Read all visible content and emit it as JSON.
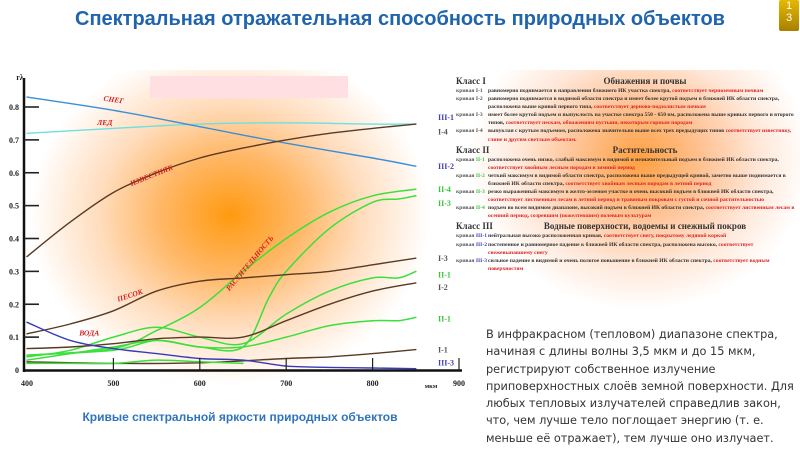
{
  "page": {
    "title": "Спектральная отражательная способность природных объектов",
    "slide_number_top": "1",
    "slide_number_bottom": "3",
    "caption": "Кривые спектральной яркости природных объектов",
    "note": "В инфракрасном (тепловом) диапазоне спектра, начиная с длины волны 3,5 мкм и до 15 мкм, регистрируют собственное излучение приповерхностных слоёв земной поверхности. Для любых тепловых излучателей справедлив закон, что, чем лучше тело поглощает энергию (т. е. меньше её отражает), тем лучше оно излучает."
  },
  "legend_table": {
    "classes": [
      {
        "name": "Класс I",
        "title": "Обнажения и почвы",
        "color": "#555555",
        "items": [
          {
            "prefix": "кривая",
            "id": "I-1",
            "text": "равномерно поднимается в направлении ближнего ИК участка спектра,",
            "match": "соответствует   черноземным почвам"
          },
          {
            "prefix": "кривая",
            "id": "I-2",
            "text": "равномерно поднимается в видимой области спектра и имеет более крутой подъем в ближней ИК области спектра, расположена выше кривой первого типа,",
            "match": "соответствует дерново-подзолистым почвам"
          },
          {
            "prefix": "кривая",
            "id": "I-3",
            "text": "имеет более крутой подъем и выпуклость на участке спектра 550 - 650 нм, расположена выше кривых первого  и второго типов,",
            "match": "соответствует пескам, обнажениям пустыни, некоторым   горным породам"
          },
          {
            "prefix": "кривая",
            "id": "I-4",
            "text": "выпуклая с крутым подъемом, расположена значительно выше всех трех предыдущих типов",
            "match": "соответствует известняку, глине и другим светлым объектам."
          }
        ]
      },
      {
        "name": "Класс II",
        "title": "Растительность",
        "color": "#3bc43b",
        "items": [
          {
            "prefix": "кривая",
            "id": "II-1",
            "text": "расположена очень низко, слабый максимум в видимой и незначительный подъем в ближней ИК области спектра,",
            "match": "соответствует хвойным лесным породам в зимний период"
          },
          {
            "prefix": "кривая",
            "id": "II-2",
            "text": "четкий максимум в видимой области спектра, расположена выше предыдущей кривой, заметно выше поднимается в ближней ИК области спектра,",
            "match": "соответствует хвойным лесным породам в летний период"
          },
          {
            "prefix": "кривая",
            "id": "II-3",
            "text": "резко выраженный максимум в желто-зеленом участке и очень высокий подъем в ближней ИК области спектра,",
            "match": "соответствует лиственным лесам в летний период и травяным покровам с густой и сочной растительностью"
          },
          {
            "prefix": "кривая",
            "id": "II-4",
            "text": "подъем во всем видимом диапазоне, высокий подъем в ближней ИК области спектра,",
            "match": "соответствует лиственным лесам в осенний период, созревшим (пожелтевшим) полевым культурам"
          }
        ]
      },
      {
        "name": "Класс III",
        "title": "Водные поверхности, водоемы и снежный покров",
        "color": "#4040b0",
        "items": [
          {
            "prefix": "кривая",
            "id": "III-1",
            "text": "нейтральная высоко расположенная кривая,",
            "match": "соответствует снегу, покрытому ледяной коркой"
          },
          {
            "prefix": "кривая",
            "id": "III-2",
            "text": "постепенное и равномерное падение к ближней ИК области спектра, расположена высоко,",
            "match": "соответствует свежевыпавшему снегу"
          },
          {
            "prefix": "кривая",
            "id": "III-3",
            "text": "сильное падение в видимой и очень пологое повышение в ближней ИК области спектра,",
            "match": "соответствует водным поверхностям"
          }
        ]
      }
    ]
  },
  "chart_data": {
    "type": "line",
    "title": "Кривые спектральной яркости природных объектов",
    "xlabel": "мкм",
    "ylabel": "rλ",
    "xlim": [
      400,
      900
    ],
    "ylim": [
      0,
      0.85
    ],
    "x_ticks": [
      400,
      500,
      600,
      700,
      800,
      900
    ],
    "x_tick_labels": [
      "400",
      "500",
      "600",
      "700",
      "800",
      "900"
    ],
    "y_ticks": [
      0,
      0.1,
      0.2,
      0.3,
      0.4,
      0.5,
      0.6,
      0.7,
      0.8
    ],
    "y_tick_labels": [
      "0",
      "0.1",
      "0.2",
      "0.3",
      "0.4",
      "0.5",
      "0.6",
      "0.7",
      "0.8"
    ],
    "grid": false,
    "annotations": [
      {
        "text": "СНЕГ",
        "x": 500,
        "y": 0.815,
        "rotate": 8
      },
      {
        "text": "ЛЕД",
        "x": 490,
        "y": 0.745,
        "rotate": 0
      },
      {
        "text": "ИЗВЕСТНЯК",
        "x": 545,
        "y": 0.585,
        "rotate": -22
      },
      {
        "text": "РАСТИТЕЛЬНОСТЬ",
        "x": 660,
        "y": 0.32,
        "rotate": -50
      },
      {
        "text": "ПЕСОК",
        "x": 520,
        "y": 0.22,
        "rotate": -18
      },
      {
        "text": "ВОДА",
        "x": 472,
        "y": 0.105,
        "rotate": 0
      }
    ],
    "series": [
      {
        "name": "III-1",
        "group": "water",
        "color": "#6ee0e0",
        "label_color": "#4040b0",
        "x": [
          400,
          500,
          600,
          700,
          800,
          850
        ],
        "y": [
          0.72,
          0.735,
          0.748,
          0.752,
          0.748,
          0.748
        ]
      },
      {
        "name": "III-2",
        "group": "water",
        "color": "#3a8fd8",
        "label_color": "#4040b0",
        "x": [
          400,
          500,
          600,
          700,
          800,
          850
        ],
        "y": [
          0.83,
          0.79,
          0.74,
          0.69,
          0.645,
          0.62
        ]
      },
      {
        "name": "I-4",
        "group": "soil",
        "color": "#5a3a22",
        "label_color": "#555555",
        "x": [
          400,
          450,
          500,
          550,
          600,
          650,
          700,
          750,
          800,
          850
        ],
        "y": [
          0.345,
          0.45,
          0.54,
          0.6,
          0.645,
          0.675,
          0.7,
          0.72,
          0.735,
          0.748
        ]
      },
      {
        "name": "II-4",
        "group": "veg",
        "color": "#3be03b",
        "label_color": "#3bc43b",
        "x": [
          400,
          500,
          550,
          600,
          650,
          700,
          750,
          800,
          850
        ],
        "y": [
          0.045,
          0.065,
          0.12,
          0.19,
          0.3,
          0.4,
          0.48,
          0.53,
          0.55
        ]
      },
      {
        "name": "II-3",
        "group": "veg",
        "color": "#3be03b",
        "label_color": "#3bc43b",
        "x": [
          400,
          500,
          550,
          600,
          650,
          680,
          700,
          750,
          800,
          830,
          850
        ],
        "y": [
          0.045,
          0.06,
          0.09,
          0.07,
          0.07,
          0.22,
          0.3,
          0.43,
          0.51,
          0.52,
          0.53
        ]
      },
      {
        "name": "I-3",
        "group": "soil",
        "color": "#5a3a22",
        "label_color": "#555555",
        "x": [
          400,
          450,
          500,
          550,
          600,
          650,
          700,
          750,
          800,
          850
        ],
        "y": [
          0.11,
          0.14,
          0.18,
          0.24,
          0.27,
          0.28,
          0.29,
          0.3,
          0.32,
          0.34
        ]
      },
      {
        "name": "II-1 (upper)",
        "group": "veg",
        "color": "#3be03b",
        "label_color": "#3bc43b",
        "label": "II-1",
        "x": [
          400,
          450,
          500,
          550,
          600,
          650,
          700,
          750,
          800,
          830,
          850
        ],
        "y": [
          0.04,
          0.06,
          0.1,
          0.13,
          0.1,
          0.08,
          0.17,
          0.24,
          0.28,
          0.28,
          0.3
        ]
      },
      {
        "name": "I-2",
        "group": "soil",
        "color": "#5a3a22",
        "label_color": "#555555",
        "x": [
          400,
          450,
          500,
          550,
          600,
          650,
          700,
          750,
          800,
          850
        ],
        "y": [
          0.065,
          0.07,
          0.08,
          0.095,
          0.1,
          0.1,
          0.15,
          0.2,
          0.24,
          0.265
        ]
      },
      {
        "name": "II-1 (lower)",
        "group": "veg",
        "color": "#3be03b",
        "label_color": "#3bc43b",
        "label": "II-1",
        "x": [
          400,
          450,
          500,
          550,
          600,
          650,
          700,
          750,
          800,
          830,
          850
        ],
        "y": [
          0.03,
          0.05,
          0.07,
          0.09,
          0.07,
          0.07,
          0.1,
          0.135,
          0.15,
          0.15,
          0.16
        ]
      },
      {
        "name": "I-1",
        "group": "soil",
        "color": "#5a3a22",
        "label_color": "#555555",
        "x": [
          400,
          500,
          600,
          700,
          750,
          800,
          850
        ],
        "y": [
          0.025,
          0.02,
          0.022,
          0.035,
          0.04,
          0.05,
          0.062
        ]
      },
      {
        "name": "II-2",
        "group": "veg",
        "color": "#3be03b",
        "label_color": "#3bc43b",
        "x": [
          400,
          450,
          500,
          550,
          600,
          650
        ],
        "y": [
          0.02,
          0.02,
          0.02,
          0.03,
          0.025,
          0.02
        ]
      },
      {
        "name": "III-3",
        "group": "water",
        "color": "#3a3ab8",
        "label_color": "#4040b0",
        "x": [
          400,
          450,
          500,
          550,
          600,
          650,
          700,
          750,
          800,
          850
        ],
        "y": [
          0.145,
          0.09,
          0.065,
          0.05,
          0.035,
          0.03,
          0.012,
          0.008,
          0.006,
          0.004
        ]
      }
    ]
  }
}
